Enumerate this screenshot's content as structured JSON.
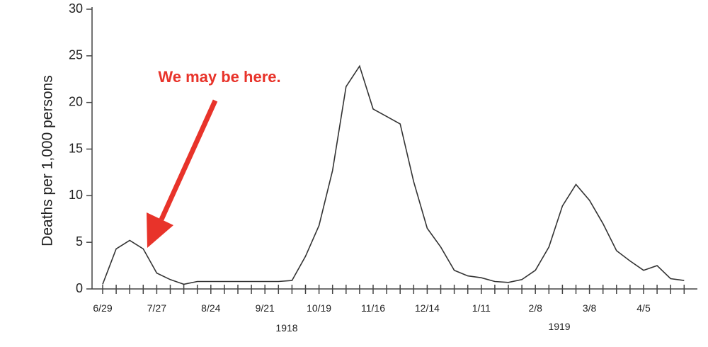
{
  "chart_data": {
    "type": "line",
    "ylabel": "Deaths per 1,000 persons",
    "annotation": "We may be here.",
    "years": [
      "1918",
      "1919"
    ],
    "categories": [
      "6/29",
      null,
      null,
      null,
      "7/27",
      null,
      null,
      null,
      "8/24",
      null,
      null,
      null,
      "9/21",
      null,
      null,
      null,
      "10/19",
      null,
      null,
      null,
      "11/16",
      null,
      null,
      null,
      "12/14",
      null,
      null,
      null,
      "1/11",
      null,
      null,
      null,
      "2/8",
      null,
      null,
      null,
      "3/8",
      null,
      null,
      null,
      "4/5",
      null,
      null,
      null
    ],
    "series": [
      {
        "color": "#333333",
        "values": [
          0.5,
          4.3,
          5.2,
          4.3,
          1.7,
          1.0,
          0.5,
          0.8,
          0.8,
          0.8,
          0.8,
          0.8,
          0.8,
          0.8,
          0.9,
          3.5,
          6.8,
          12.7,
          21.7,
          23.9,
          19.3,
          18.5,
          17.7,
          11.5,
          6.5,
          4.5,
          2.0,
          1.4,
          1.2,
          0.8,
          0.7,
          1.0,
          2.0,
          4.5,
          8.9,
          11.2,
          9.5,
          7.0,
          4.1,
          3.0,
          2.0,
          2.5,
          1.1,
          0.9
        ]
      }
    ],
    "ylim": [
      0,
      30
    ],
    "yticks": [
      0,
      5,
      10,
      15,
      20,
      25,
      30
    ],
    "annotation_color": "#e8332a"
  }
}
